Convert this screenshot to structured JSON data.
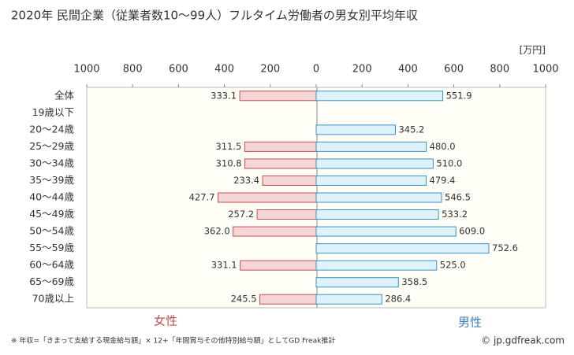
{
  "chart_data": {
    "type": "butterfly-bar",
    "title": "2020年 民間企業（従業者数10〜99人）フルタイム労働者の男女別平均年収",
    "unit_label": "[万円]",
    "categories": [
      "全体",
      "19歳以下",
      "20〜24歳",
      "25〜29歳",
      "30〜34歳",
      "35〜39歳",
      "40〜44歳",
      "45〜49歳",
      "50〜54歳",
      "55〜59歳",
      "60〜64歳",
      "65〜69歳",
      "70歳以上"
    ],
    "series": [
      {
        "name": "女性",
        "side": "left",
        "color": "#f5d5d5",
        "stroke": "#c0504d",
        "text_color": "#c0504d",
        "values": [
          333.1,
          null,
          null,
          311.5,
          310.8,
          233.4,
          427.7,
          257.2,
          362.0,
          null,
          331.1,
          null,
          245.5
        ],
        "value_labels": [
          "333.1",
          null,
          null,
          "311.5",
          "310.8",
          "233.4",
          "427.7",
          "257.2",
          "362.0",
          null,
          "331.1",
          null,
          "245.5"
        ]
      },
      {
        "name": "男性",
        "side": "right",
        "color": "#ddf2fb",
        "stroke": "#3d8fc4",
        "text_color": "#3a7fc0",
        "values": [
          551.9,
          null,
          345.2,
          480.0,
          510.0,
          479.4,
          546.5,
          533.2,
          609.0,
          752.6,
          525.0,
          358.5,
          286.4
        ],
        "value_labels": [
          "551.9",
          null,
          "345.2",
          "480.0",
          "510.0",
          "479.4",
          "546.5",
          "533.2",
          "609.0",
          "752.6",
          "525.0",
          "358.5",
          "286.4"
        ]
      }
    ],
    "xlim": [
      -1000,
      1000
    ],
    "xticks": [
      {
        "value": -1000,
        "label": "1000"
      },
      {
        "value": -800,
        "label": "800"
      },
      {
        "value": -600,
        "label": "600"
      },
      {
        "value": -400,
        "label": "400"
      },
      {
        "value": -200,
        "label": "200"
      },
      0,
      200,
      400,
      600,
      800,
      1000
    ],
    "footnote": "※ 年収=「きまって支給する現金給与額」× 12+「年間賞与その他特別給与額」としてGD Freak推計",
    "credit": "© jp.gdfreak.com"
  }
}
